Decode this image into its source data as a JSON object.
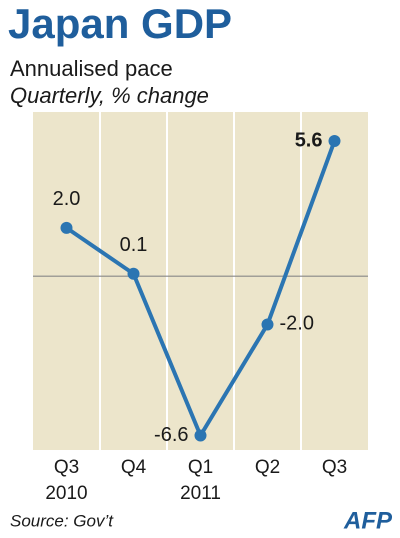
{
  "chart_data": {
    "type": "line",
    "title": "Japan GDP",
    "subtitle": "Annualised pace",
    "subtitle2": "Quarterly, % change",
    "categories": [
      "Q3",
      "Q4",
      "Q1",
      "Q2",
      "Q3"
    ],
    "year_labels": [
      "2010",
      null,
      "2011",
      null,
      null
    ],
    "values": [
      2.0,
      0.1,
      -6.6,
      -2.0,
      5.6
    ],
    "value_labels": [
      "2.0",
      "0.1",
      "-6.6",
      "-2.0",
      "5.6"
    ],
    "color": "#2b75b2",
    "ylim": [
      -7.2,
      6.8
    ],
    "zero_line": true,
    "source": "Source: Gov’t",
    "logo": "AFP"
  }
}
